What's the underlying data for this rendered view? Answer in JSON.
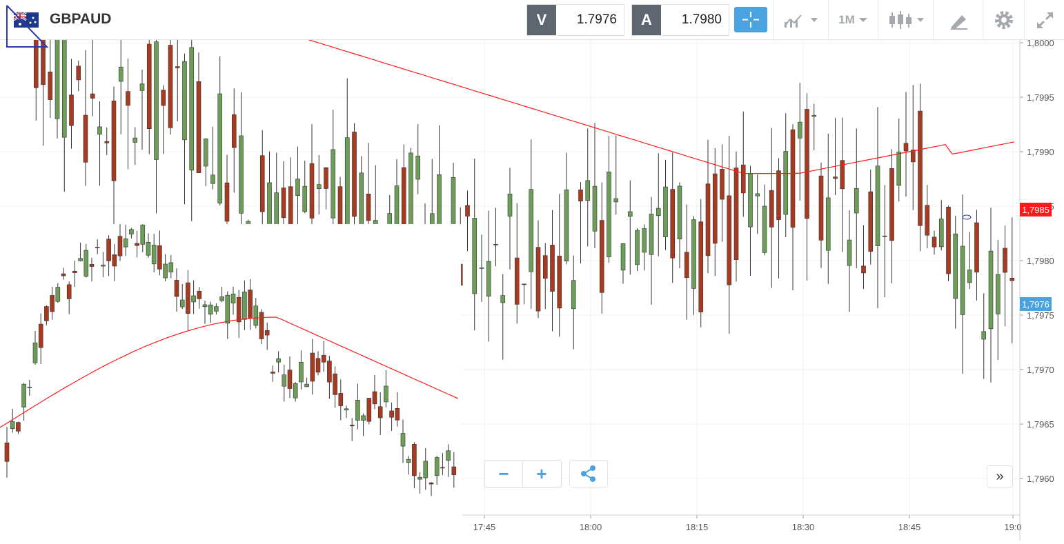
{
  "header": {
    "symbol": "GBPAUD",
    "flag_icon": "gb-au-flag-icon",
    "sell": {
      "tag": "V",
      "value": "1.7976"
    },
    "buy": {
      "tag": "A",
      "value": "1.7980"
    },
    "timeframe": "1M",
    "tools": [
      "crosshair-icon",
      "line-chart-icon",
      "timeframe-selector",
      "candlestick-icon",
      "draw-icon",
      "gear-icon",
      "expand-icon"
    ]
  },
  "chart": {
    "y_ticks": [
      "1,8000",
      "1,7995",
      "1,7990",
      "1,7985",
      "1,7980",
      "1,7975",
      "1,7970",
      "1,7965",
      "1,7960"
    ],
    "x_ticks": [
      "17:45",
      "18:00",
      "18:15",
      "18:30",
      "18:45",
      "19:0"
    ],
    "current_price_tag": "1,7976",
    "ma_price_tag": "1,7985",
    "colors": {
      "up": "#6c9e5a",
      "down": "#a83a22",
      "ma": "#ff1a1a",
      "current": "#4aa3df",
      "accent": "#4aa3df"
    }
  },
  "chart_data": {
    "type": "candlestick",
    "ylim": [
      1.7955,
      1.8002
    ],
    "x_ticks": [
      "17:45",
      "18:00",
      "18:15",
      "18:30",
      "18:45",
      "19:0"
    ],
    "moving_average_end": 1.7985,
    "last_close": 1.7976
  },
  "controls": {
    "zoom_out": "−",
    "zoom_in": "+",
    "share_icon": "share-icon",
    "scroll_icon": "»"
  }
}
